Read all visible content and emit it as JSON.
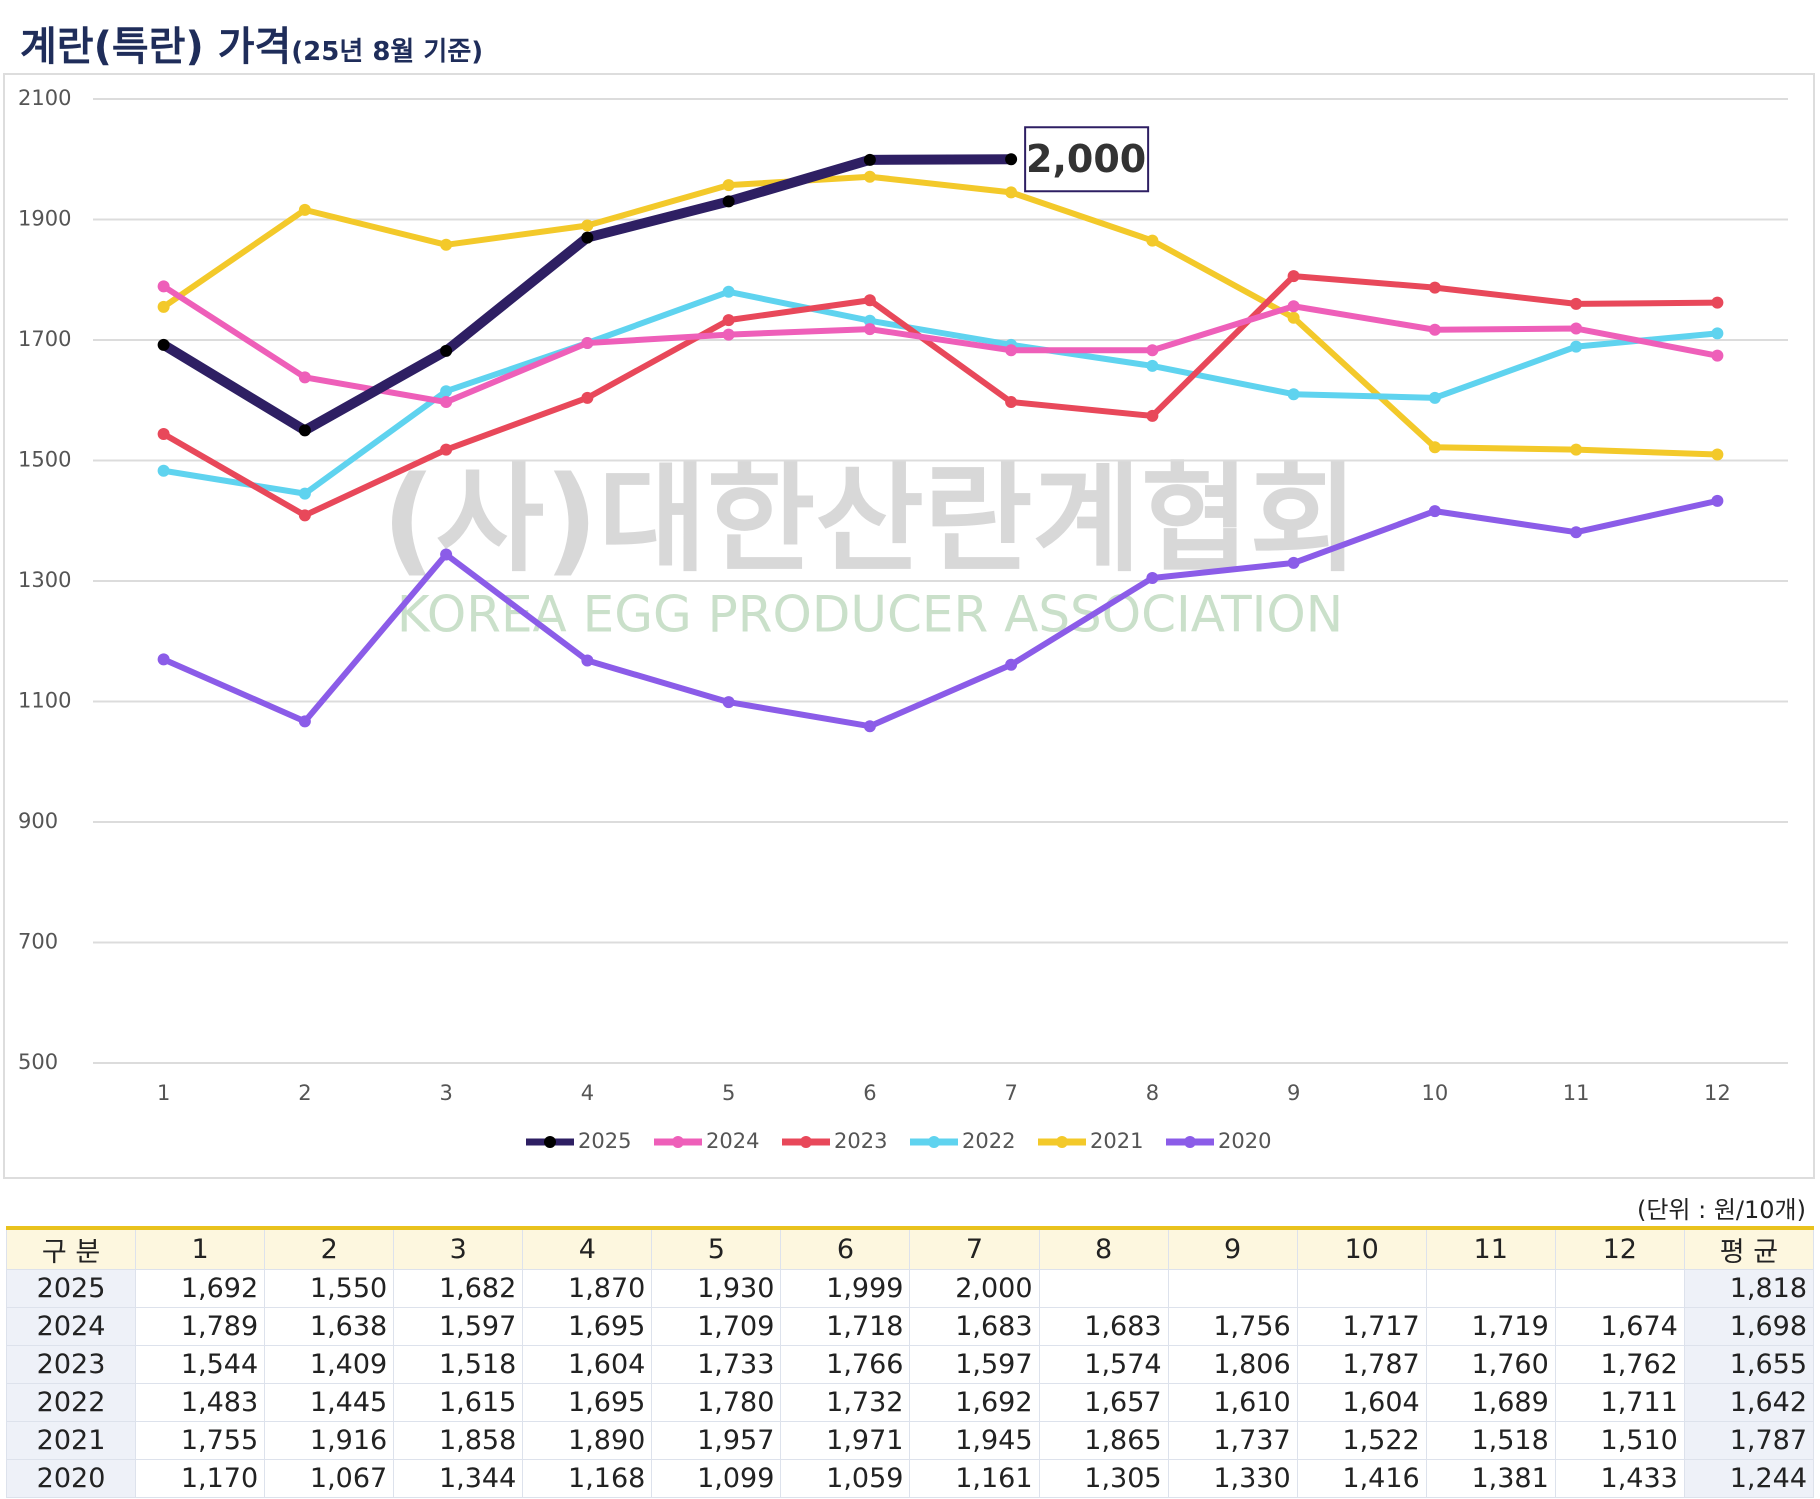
{
  "title": "계란(특란) 가격",
  "subtitle": "(25년 8월 기준)",
  "chart_data": {
    "type": "line",
    "categories": [
      "1",
      "2",
      "3",
      "4",
      "5",
      "6",
      "7",
      "8",
      "9",
      "10",
      "11",
      "12"
    ],
    "series": [
      {
        "name": "2025",
        "color": "#2e1f63",
        "values": [
          1692,
          1550,
          1682,
          1870,
          1930,
          1999,
          2000,
          null,
          null,
          null,
          null,
          null
        ]
      },
      {
        "name": "2024",
        "color": "#ee5fb9",
        "values": [
          1789,
          1638,
          1597,
          1695,
          1709,
          1718,
          1683,
          1683,
          1756,
          1717,
          1719,
          1674
        ]
      },
      {
        "name": "2023",
        "color": "#e8485a",
        "values": [
          1544,
          1409,
          1518,
          1604,
          1733,
          1766,
          1597,
          1574,
          1806,
          1787,
          1760,
          1762
        ]
      },
      {
        "name": "2022",
        "color": "#5fd3ef",
        "values": [
          1483,
          1445,
          1615,
          1695,
          1780,
          1732,
          1692,
          1657,
          1610,
          1604,
          1689,
          1711
        ]
      },
      {
        "name": "2021",
        "color": "#f3c92a",
        "values": [
          1755,
          1916,
          1858,
          1890,
          1957,
          1971,
          1945,
          1865,
          1737,
          1522,
          1518,
          1510
        ]
      },
      {
        "name": "2020",
        "color": "#8b5ce8",
        "values": [
          1170,
          1067,
          1344,
          1168,
          1099,
          1059,
          1161,
          1305,
          1330,
          1416,
          1381,
          1433
        ]
      }
    ],
    "ylim": [
      500,
      2100
    ],
    "yticks": [
      500,
      700,
      900,
      1100,
      1300,
      1500,
      1700,
      1900,
      2100
    ],
    "grid": true,
    "annotation": "2,000",
    "watermark": [
      "(사)대한산란계협회",
      "KOREA EGG PRODUCER ASSOCIATION"
    ],
    "legend": "bottom"
  },
  "table": {
    "unit": "(단위 : 원/10개)",
    "header": [
      "구 분",
      "1",
      "2",
      "3",
      "4",
      "5",
      "6",
      "7",
      "8",
      "9",
      "10",
      "11",
      "12",
      "평 균"
    ],
    "rows": [
      [
        "2025",
        "1,692",
        "1,550",
        "1,682",
        "1,870",
        "1,930",
        "1,999",
        "2,000",
        null,
        null,
        null,
        null,
        null,
        "1,818"
      ],
      [
        "2024",
        "1,789",
        "1,638",
        "1,597",
        "1,695",
        "1,709",
        "1,718",
        "1,683",
        "1,683",
        "1,756",
        "1,717",
        "1,719",
        "1,674",
        "1,698"
      ],
      [
        "2023",
        "1,544",
        "1,409",
        "1,518",
        "1,604",
        "1,733",
        "1,766",
        "1,597",
        "1,574",
        "1,806",
        "1,787",
        "1,760",
        "1,762",
        "1,655"
      ],
      [
        "2022",
        "1,483",
        "1,445",
        "1,615",
        "1,695",
        "1,780",
        "1,732",
        "1,692",
        "1,657",
        "1,610",
        "1,604",
        "1,689",
        "1,711",
        "1,642"
      ],
      [
        "2021",
        "1,755",
        "1,916",
        "1,858",
        "1,890",
        "1,957",
        "1,971",
        "1,945",
        "1,865",
        "1,737",
        "1,522",
        "1,518",
        "1,510",
        "1,787"
      ],
      [
        "2020",
        "1,170",
        "1,067",
        "1,344",
        "1,168",
        "1,099",
        "1,059",
        "1,161",
        "1,305",
        "1,330",
        "1,416",
        "1,381",
        "1,433",
        "1,244"
      ]
    ]
  }
}
